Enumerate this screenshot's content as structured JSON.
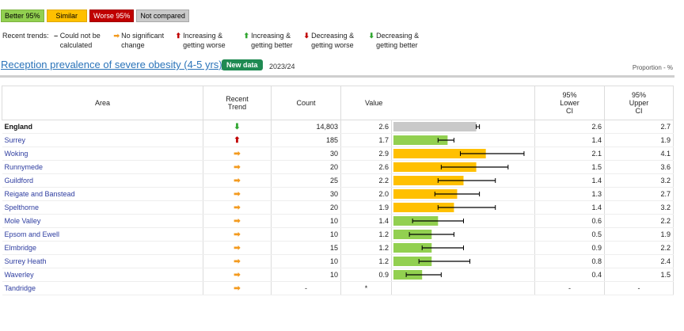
{
  "legend": {
    "better": "Better 95%",
    "similar": "Similar",
    "worse": "Worse 95%",
    "not_compared": "Not compared"
  },
  "trends_legend": {
    "label": "Recent trends:",
    "items": [
      {
        "icon": "–",
        "text": "Could not be calculated",
        "color": "#555555"
      },
      {
        "icon": "➡",
        "text": "No significant change",
        "color": "#f39a1e"
      },
      {
        "icon": "⬆",
        "text": "Increasing & getting worse",
        "color": "#c00000"
      },
      {
        "icon": "⬆",
        "text": "Increasing & getting better",
        "color": "#2ea52e"
      },
      {
        "icon": "⬇",
        "text": "Decreasing & getting worse",
        "color": "#c00000"
      },
      {
        "icon": "⬇",
        "text": "Decreasing & getting better",
        "color": "#2ea52e"
      }
    ]
  },
  "indicator": {
    "title": "Reception prevalence of severe obesity (4-5 yrs)",
    "badge": "New data",
    "period": "2023/24",
    "unit": "Proportion - %"
  },
  "columns": {
    "area": "Area",
    "trend": "Recent Trend",
    "count": "Count",
    "value": "Value",
    "lower": "95% Lower CI",
    "upper": "95% Upper CI"
  },
  "colors": {
    "better": "#92d050",
    "similar": "#ffc000",
    "worse": "#c00000",
    "not_compared": "#c9c9c9"
  },
  "chart_data": {
    "type": "bar",
    "xlim": [
      0,
      4.4
    ],
    "rows": [
      {
        "area": "England",
        "trend": "down_better",
        "count": "14,803",
        "value": 2.6,
        "value_label": "2.6",
        "lower": "2.6",
        "upper": "2.7",
        "lo": 2.6,
        "hi": 2.7,
        "status": "not_compared"
      },
      {
        "area": "Surrey",
        "trend": "up_worse",
        "count": "185",
        "value": 1.7,
        "value_label": "1.7",
        "lower": "1.4",
        "upper": "1.9",
        "lo": 1.4,
        "hi": 1.9,
        "status": "better"
      },
      {
        "area": "Woking",
        "trend": "no_change",
        "count": "30",
        "value": 2.9,
        "value_label": "2.9",
        "lower": "2.1",
        "upper": "4.1",
        "lo": 2.1,
        "hi": 4.1,
        "status": "similar"
      },
      {
        "area": "Runnymede",
        "trend": "no_change",
        "count": "20",
        "value": 2.6,
        "value_label": "2.6",
        "lower": "1.5",
        "upper": "3.6",
        "lo": 1.5,
        "hi": 3.6,
        "status": "similar"
      },
      {
        "area": "Guildford",
        "trend": "no_change",
        "count": "25",
        "value": 2.2,
        "value_label": "2.2",
        "lower": "1.4",
        "upper": "3.2",
        "lo": 1.4,
        "hi": 3.2,
        "status": "similar"
      },
      {
        "area": "Reigate and Banstead",
        "trend": "no_change",
        "count": "30",
        "value": 2.0,
        "value_label": "2.0",
        "lower": "1.3",
        "upper": "2.7",
        "lo": 1.3,
        "hi": 2.7,
        "status": "similar"
      },
      {
        "area": "Spelthorne",
        "trend": "no_change",
        "count": "20",
        "value": 1.9,
        "value_label": "1.9",
        "lower": "1.4",
        "upper": "3.2",
        "lo": 1.4,
        "hi": 3.2,
        "status": "similar"
      },
      {
        "area": "Mole Valley",
        "trend": "no_change",
        "count": "10",
        "value": 1.4,
        "value_label": "1.4",
        "lower": "0.6",
        "upper": "2.2",
        "lo": 0.6,
        "hi": 2.2,
        "status": "better"
      },
      {
        "area": "Epsom and Ewell",
        "trend": "no_change",
        "count": "10",
        "value": 1.2,
        "value_label": "1.2",
        "lower": "0.5",
        "upper": "1.9",
        "lo": 0.5,
        "hi": 1.9,
        "status": "better"
      },
      {
        "area": "Elmbridge",
        "trend": "no_change",
        "count": "15",
        "value": 1.2,
        "value_label": "1.2",
        "lower": "0.9",
        "upper": "2.2",
        "lo": 0.9,
        "hi": 2.2,
        "status": "better"
      },
      {
        "area": "Surrey Heath",
        "trend": "no_change",
        "count": "10",
        "value": 1.2,
        "value_label": "1.2",
        "lower": "0.8",
        "upper": "2.4",
        "lo": 0.8,
        "hi": 2.4,
        "status": "better"
      },
      {
        "area": "Waverley",
        "trend": "no_change",
        "count": "10",
        "value": 0.9,
        "value_label": "0.9",
        "lower": "0.4",
        "upper": "1.5",
        "lo": 0.4,
        "hi": 1.5,
        "status": "better"
      },
      {
        "area": "Tandridge",
        "trend": "no_change",
        "count": "-",
        "value": null,
        "value_label": "*",
        "lower": "-",
        "upper": "-",
        "lo": null,
        "hi": null,
        "status": "none"
      }
    ]
  }
}
